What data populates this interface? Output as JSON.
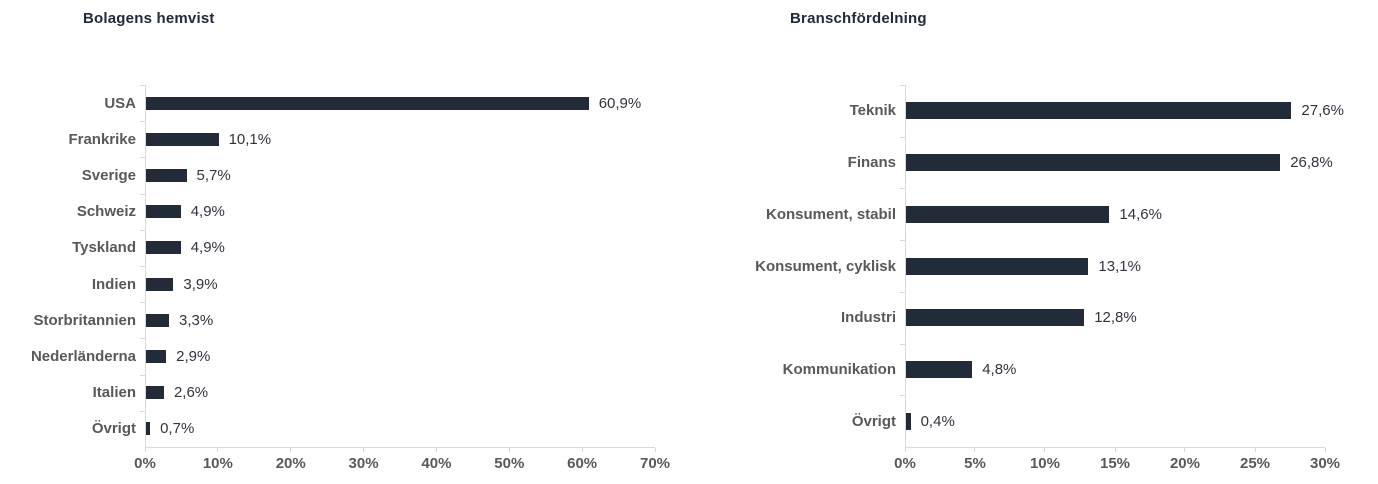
{
  "colors": {
    "bar": "#222B38",
    "title": "#212B3B",
    "category_label": "#595959",
    "value_label": "#30343E",
    "axis_label": "#595959",
    "axis_line": "#D9D9D9"
  },
  "chart_data": [
    {
      "type": "bar",
      "orientation": "horizontal",
      "title": "Bolagens hemvist",
      "categories": [
        "USA",
        "Frankrike",
        "Sverige",
        "Schweiz",
        "Tyskland",
        "Indien",
        "Storbritannien",
        "Nederländerna",
        "Italien",
        "Övrigt"
      ],
      "values": [
        60.9,
        10.1,
        5.7,
        4.9,
        4.9,
        3.9,
        3.3,
        2.9,
        2.6,
        0.7
      ],
      "value_labels": [
        "60,9%",
        "10,1%",
        "5,7%",
        "4,9%",
        "4,9%",
        "3,9%",
        "3,3%",
        "2,9%",
        "2,6%",
        "0,7%"
      ],
      "xlim": [
        0,
        70
      ],
      "x_ticks": [
        "0%",
        "10%",
        "20%",
        "30%",
        "40%",
        "50%",
        "60%",
        "70%"
      ],
      "grid": false,
      "legend": "none"
    },
    {
      "type": "bar",
      "orientation": "horizontal",
      "title": "Branschfördelning",
      "categories": [
        "Teknik",
        "Finans",
        "Konsument, stabil",
        "Konsument, cyklisk",
        "Industri",
        "Kommunikation",
        "Övrigt"
      ],
      "values": [
        27.6,
        26.8,
        14.6,
        13.1,
        12.8,
        4.8,
        0.4
      ],
      "value_labels": [
        "27,6%",
        "26,8%",
        "14,6%",
        "13,1%",
        "12,8%",
        "4,8%",
        "0,4%"
      ],
      "xlim": [
        0,
        30
      ],
      "x_ticks": [
        "0%",
        "5%",
        "10%",
        "15%",
        "20%",
        "25%",
        "30%"
      ],
      "grid": false,
      "legend": "none"
    }
  ]
}
